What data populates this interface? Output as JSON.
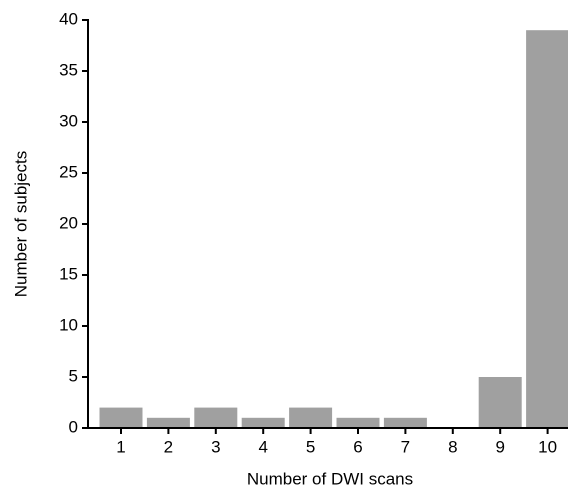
{
  "chart_data": {
    "type": "bar",
    "x_label": "Number of DWI scans",
    "y_label": "Number of subjects",
    "categories": [
      "1",
      "2",
      "3",
      "4",
      "5",
      "6",
      "7",
      "8",
      "9",
      "10"
    ],
    "values": [
      2,
      1,
      2,
      1,
      2,
      1,
      1,
      0,
      5,
      39
    ],
    "color": "#a0a0a0",
    "ylim": [
      0,
      40
    ],
    "yticks": [
      0,
      5,
      10,
      15,
      20,
      25,
      30,
      35,
      40
    ],
    "grid": false
  }
}
